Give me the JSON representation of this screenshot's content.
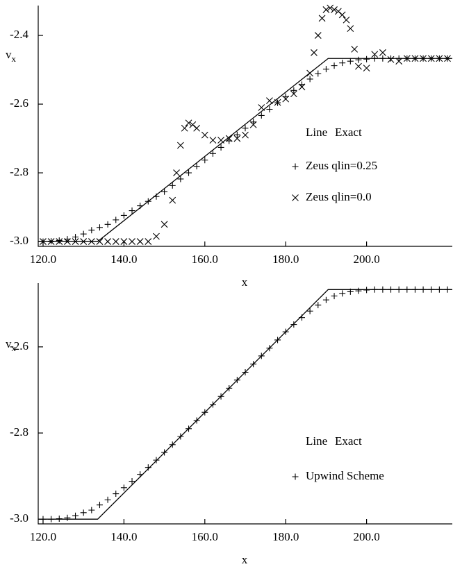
{
  "chart_data": [
    {
      "type": "line",
      "x_label": "x",
      "y_label": {
        "text": "v",
        "subscript": "x"
      },
      "xlim": [
        118.8,
        221.2
      ],
      "ylim": [
        -3.014,
        -2.313
      ],
      "xticks": [
        {
          "value": 120,
          "label": "120.0"
        },
        {
          "value": 140,
          "label": "140.0"
        },
        {
          "value": 160,
          "label": "160.0"
        },
        {
          "value": 180,
          "label": "180.0"
        },
        {
          "value": 200,
          "label": "200.0"
        }
      ],
      "yticks": [
        {
          "value": -3,
          "label": "-3.0"
        },
        -2.8,
        -2.6,
        -2.4
      ],
      "grid": false,
      "series": [
        {
          "name": "Exact",
          "legend_symbol": "Line",
          "marker": "line",
          "color": "#000000",
          "x": [
            118.8,
            133.5,
            190.5,
            221.2
          ],
          "values": [
            -3,
            -3,
            -2.467,
            -2.467
          ]
        },
        {
          "name": "Zeus qlin=0.25",
          "marker": "plus",
          "color": "#000000",
          "x": [
            120,
            122,
            124,
            126,
            128,
            130,
            132,
            134,
            136,
            138,
            140,
            142,
            144,
            146,
            148,
            150,
            152,
            154,
            156,
            158,
            160,
            162,
            164,
            166,
            168,
            170,
            172,
            174,
            176,
            178,
            180,
            182,
            184,
            186,
            188,
            190,
            192,
            194,
            196,
            198,
            200,
            202,
            204,
            206,
            208,
            210,
            212,
            214,
            216,
            218,
            220
          ],
          "values": [
            -3,
            -2.999,
            -2.997,
            -2.993,
            -2.987,
            -2.978,
            -2.967,
            -2.959,
            -2.95,
            -2.937,
            -2.924,
            -2.91,
            -2.896,
            -2.883,
            -2.869,
            -2.855,
            -2.837,
            -2.818,
            -2.8,
            -2.781,
            -2.763,
            -2.744,
            -2.726,
            -2.707,
            -2.689,
            -2.67,
            -2.652,
            -2.633,
            -2.615,
            -2.596,
            -2.578,
            -2.56,
            -2.543,
            -2.527,
            -2.511,
            -2.498,
            -2.488,
            -2.48,
            -2.475,
            -2.471,
            -2.469,
            -2.467,
            -2.467,
            -2.467,
            -2.467,
            -2.467,
            -2.467,
            -2.467,
            -2.467,
            -2.467,
            -2.467
          ]
        },
        {
          "name": "Zeus qlin=0.0",
          "marker": "cross",
          "color": "#000000",
          "x": [
            120,
            122,
            124,
            126,
            128,
            130,
            132,
            134,
            136,
            138,
            140,
            142,
            144,
            146,
            148,
            150,
            152,
            153,
            154,
            155,
            156,
            157,
            158,
            160,
            162,
            164,
            166,
            168,
            170,
            172,
            174,
            176,
            178,
            180,
            182,
            184,
            186,
            187,
            188,
            189,
            190,
            191,
            192,
            193,
            194,
            195,
            196,
            197,
            198,
            200,
            202,
            204,
            206,
            208,
            210,
            212,
            214,
            216,
            218,
            220
          ],
          "values": [
            -3,
            -3,
            -3,
            -3,
            -3,
            -3,
            -3,
            -3,
            -3,
            -3,
            -3,
            -3,
            -3,
            -3,
            -2.985,
            -2.95,
            -2.88,
            -2.8,
            -2.72,
            -2.67,
            -2.655,
            -2.66,
            -2.67,
            -2.69,
            -2.705,
            -2.705,
            -2.7,
            -2.7,
            -2.69,
            -2.66,
            -2.61,
            -2.59,
            -2.595,
            -2.585,
            -2.57,
            -2.55,
            -2.51,
            -2.45,
            -2.4,
            -2.35,
            -2.325,
            -2.32,
            -2.325,
            -2.33,
            -2.34,
            -2.355,
            -2.38,
            -2.44,
            -2.49,
            -2.495,
            -2.455,
            -2.45,
            -2.47,
            -2.475,
            -2.467,
            -2.467,
            -2.467,
            -2.467,
            -2.467,
            -2.467
          ]
        }
      ]
    },
    {
      "type": "line",
      "x_label": "x",
      "y_label": {
        "text": "v",
        "subscript": "x"
      },
      "xlim": [
        118.8,
        221.2
      ],
      "ylim": [
        -3.011,
        -2.452
      ],
      "xticks": [
        {
          "value": 120,
          "label": "120.0"
        },
        {
          "value": 140,
          "label": "140.0"
        },
        {
          "value": 160,
          "label": "160.0"
        },
        {
          "value": 180,
          "label": "180.0"
        },
        {
          "value": 200,
          "label": "200.0"
        }
      ],
      "yticks": [
        {
          "value": -3,
          "label": "-3.0"
        },
        -2.8,
        -2.6
      ],
      "grid": false,
      "series": [
        {
          "name": "Exact",
          "legend_symbol": "Line",
          "marker": "line",
          "color": "#000000",
          "x": [
            118.8,
            133.5,
            190.5,
            221.2
          ],
          "values": [
            -3,
            -3,
            -2.467,
            -2.467
          ]
        },
        {
          "name": "Upwind Scheme",
          "marker": "plus",
          "color": "#000000",
          "x": [
            120,
            122,
            124,
            126,
            128,
            130,
            132,
            134,
            136,
            138,
            140,
            142,
            144,
            146,
            148,
            150,
            152,
            154,
            156,
            158,
            160,
            162,
            164,
            166,
            168,
            170,
            172,
            174,
            176,
            178,
            180,
            182,
            184,
            186,
            188,
            190,
            192,
            194,
            196,
            198,
            200,
            202,
            204,
            206,
            208,
            210,
            212,
            214,
            216,
            218,
            220
          ],
          "values": [
            -3,
            -3,
            -2.999,
            -2.997,
            -2.992,
            -2.985,
            -2.979,
            -2.967,
            -2.955,
            -2.941,
            -2.927,
            -2.912,
            -2.896,
            -2.88,
            -2.863,
            -2.845,
            -2.827,
            -2.808,
            -2.79,
            -2.771,
            -2.752,
            -2.734,
            -2.715,
            -2.696,
            -2.677,
            -2.659,
            -2.64,
            -2.621,
            -2.603,
            -2.584,
            -2.565,
            -2.548,
            -2.532,
            -2.517,
            -2.503,
            -2.491,
            -2.482,
            -2.476,
            -2.472,
            -2.47,
            -2.468,
            -2.467,
            -2.467,
            -2.467,
            -2.467,
            -2.467,
            -2.467,
            -2.467,
            -2.467,
            -2.467,
            -2.467
          ]
        }
      ]
    }
  ]
}
